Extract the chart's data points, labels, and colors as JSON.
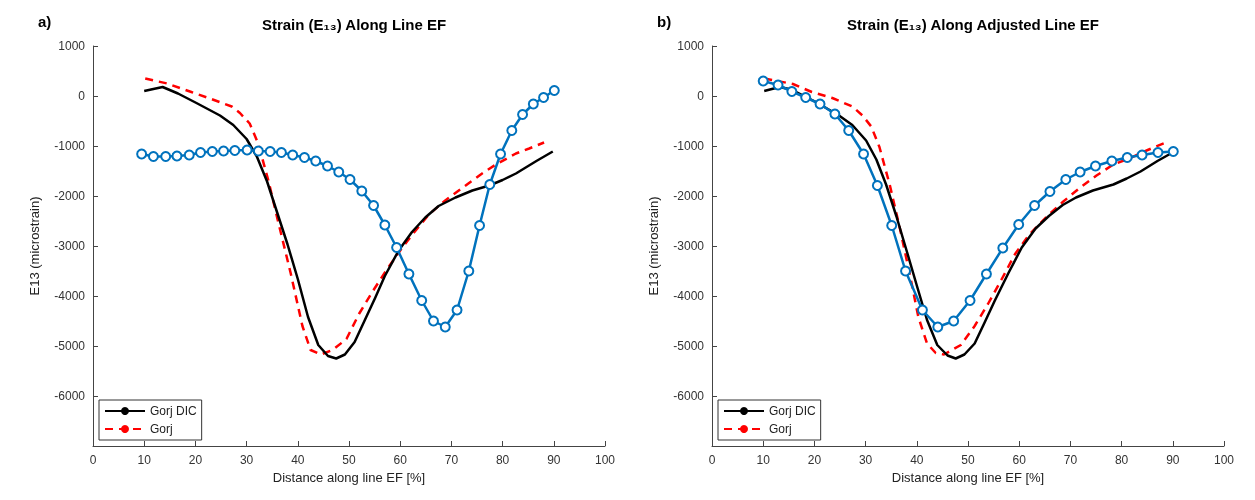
{
  "chart_data": [
    {
      "type": "line",
      "title": "Strain (E₁₃) Along Line EF",
      "annotations": [
        "a)"
      ],
      "xlabel": "Distance along line EF [%]",
      "ylabel": "E13 (microstrain)",
      "xlim": [
        0,
        100
      ],
      "xticks": [
        0,
        10,
        20,
        30,
        40,
        50,
        60,
        70,
        80,
        90,
        100
      ],
      "ylim": [
        -7000,
        1000
      ],
      "yticks": [
        -6000,
        -5000,
        -4000,
        -3000,
        -2000,
        -1000,
        0,
        1000
      ],
      "grid": false,
      "legend": "bottom left",
      "series": [
        {
          "color": "#0072bd",
          "marker": "circle",
          "line_style": "solid",
          "x": [
            9.5,
            11.8,
            14.2,
            16.4,
            18.8,
            21.0,
            23.3,
            25.5,
            27.7,
            30.1,
            32.3,
            34.6,
            36.8,
            39.0,
            41.3,
            43.5,
            45.8,
            48.0,
            50.2,
            52.5,
            54.8,
            57.0,
            59.3,
            61.7,
            64.2,
            66.5,
            68.8,
            71.1,
            73.4,
            75.5,
            77.5,
            79.6,
            81.8,
            83.9,
            86.0,
            88.0,
            90.1
          ],
          "values": [
            -1160,
            -1210,
            -1210,
            -1200,
            -1180,
            -1130,
            -1110,
            -1100,
            -1090,
            -1080,
            -1100,
            -1110,
            -1130,
            -1180,
            -1230,
            -1300,
            -1400,
            -1520,
            -1670,
            -1900,
            -2190,
            -2580,
            -3030,
            -3560,
            -4090,
            -4500,
            -4620,
            -4280,
            -3500,
            -2590,
            -1770,
            -1160,
            -690,
            -370,
            -160,
            -30,
            110
          ]
        },
        {
          "name": "Gorj DIC",
          "color": "#000000",
          "marker": "none",
          "line_style": "solid",
          "x": [
            10,
            13.6,
            16.6,
            20.2,
            24.8,
            27.4,
            30,
            32,
            34,
            36,
            38,
            40,
            42,
            44,
            45.9,
            47.5,
            49.2,
            51.1,
            53.1,
            55.1,
            57,
            59.7,
            62.3,
            64.9,
            67.5,
            70.8,
            74.1,
            77.4,
            80,
            82.6,
            86.6,
            89.8
          ],
          "values": [
            100,
            180,
            50,
            -140,
            -390,
            -580,
            -860,
            -1210,
            -1710,
            -2340,
            -2970,
            -3660,
            -4420,
            -4980,
            -5200,
            -5250,
            -5170,
            -4920,
            -4480,
            -4040,
            -3600,
            -3090,
            -2720,
            -2430,
            -2200,
            -2030,
            -1890,
            -1790,
            -1680,
            -1550,
            -1300,
            -1110
          ]
        },
        {
          "name": "Gorj",
          "color": "#ff0000",
          "marker": "none",
          "line_style": "dashed",
          "x": [
            10.2,
            14.5,
            19.2,
            23.1,
            27.1,
            28.7,
            30.6,
            32.3,
            34.3,
            36.2,
            38.6,
            40.9,
            42.5,
            44.5,
            46.8,
            49.5,
            52,
            54.6,
            57.4,
            60,
            62.3,
            65.6,
            68.8,
            72.1,
            76,
            78.7,
            82.6,
            85.2,
            88.1
          ],
          "values": [
            350,
            250,
            80,
            -60,
            -210,
            -340,
            -550,
            -960,
            -1710,
            -2530,
            -3540,
            -4600,
            -5080,
            -5170,
            -5080,
            -4860,
            -4350,
            -3910,
            -3470,
            -3090,
            -2780,
            -2370,
            -2090,
            -1840,
            -1550,
            -1370,
            -1150,
            -1050,
            -930
          ]
        }
      ]
    },
    {
      "type": "line",
      "title": "Strain (E₁₃) Along Adjusted Line EF",
      "annotations": [
        "b)"
      ],
      "xlabel": "Distance along line EF [%]",
      "ylabel": "E13 (microstrain)",
      "xlim": [
        0,
        100
      ],
      "xticks": [
        0,
        10,
        20,
        30,
        40,
        50,
        60,
        70,
        80,
        90,
        100
      ],
      "ylim": [
        -7000,
        1000
      ],
      "yticks": [
        -6000,
        -5000,
        -4000,
        -3000,
        -2000,
        -1000,
        0,
        1000
      ],
      "grid": false,
      "legend": "bottom left",
      "series": [
        {
          "color": "#0072bd",
          "marker": "circle",
          "line_style": "solid",
          "x": [
            10,
            12.9,
            15.6,
            18.3,
            21.1,
            24,
            26.7,
            29.6,
            32.3,
            35.1,
            37.8,
            41.1,
            44.1,
            47.2,
            50.4,
            53.6,
            56.8,
            59.9,
            63,
            66,
            69.1,
            71.9,
            74.9,
            78.1,
            81.1,
            84,
            87.1,
            90.1
          ],
          "values": [
            300,
            220,
            90,
            -30,
            -160,
            -360,
            -690,
            -1160,
            -1790,
            -2590,
            -3500,
            -4280,
            -4620,
            -4500,
            -4090,
            -3560,
            -3040,
            -2570,
            -2190,
            -1910,
            -1670,
            -1520,
            -1400,
            -1300,
            -1230,
            -1180,
            -1130,
            -1110
          ]
        },
        {
          "name": "Gorj DIC",
          "color": "#000000",
          "marker": "none",
          "line_style": "solid",
          "x": [
            10.2,
            13.2,
            15.5,
            20.1,
            24.8,
            27.4,
            30.1,
            32.1,
            34,
            36,
            38,
            40,
            42,
            44,
            46,
            47.6,
            49.3,
            51.3,
            53.2,
            55.2,
            57.9,
            60.5,
            63.2,
            65.8,
            68.5,
            71.1,
            74.4,
            78.4,
            81,
            83.7,
            87,
            90.3
          ],
          "values": [
            100,
            180,
            130,
            -110,
            -390,
            -580,
            -890,
            -1270,
            -1770,
            -2400,
            -3090,
            -3790,
            -4480,
            -4980,
            -5190,
            -5250,
            -5170,
            -4950,
            -4540,
            -4100,
            -3540,
            -3030,
            -2650,
            -2400,
            -2180,
            -2030,
            -1890,
            -1770,
            -1650,
            -1510,
            -1300,
            -1110
          ]
        },
        {
          "name": "Gorj",
          "color": "#ff0000",
          "marker": "none",
          "line_style": "dashed",
          "x": [
            10.2,
            15.8,
            19.5,
            23.5,
            27.4,
            29.4,
            31.1,
            32.7,
            34.7,
            36.7,
            38.7,
            40.3,
            42,
            43.7,
            45.3,
            48.6,
            51.3,
            53.9,
            56.6,
            59.2,
            61.9,
            65.2,
            68.5,
            71.8,
            75.1,
            78.4,
            81.7,
            85.1,
            88.4
          ],
          "values": [
            350,
            240,
            80,
            -40,
            -210,
            -390,
            -610,
            -1020,
            -1770,
            -2650,
            -3600,
            -4420,
            -4950,
            -5140,
            -5170,
            -4980,
            -4600,
            -4160,
            -3660,
            -3160,
            -2780,
            -2430,
            -2120,
            -1840,
            -1590,
            -1370,
            -1240,
            -1080,
            -940
          ]
        }
      ]
    }
  ]
}
